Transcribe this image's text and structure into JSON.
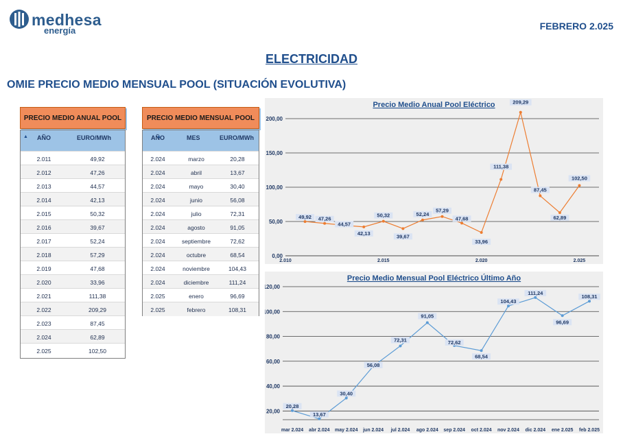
{
  "header": {
    "logo_name": "medhesa",
    "logo_sub": "energía",
    "date": "FEBRERO 2.025"
  },
  "page": {
    "title": "ELECTRICIDAD",
    "subtitle": "OMIE PRECIO MEDIO MENSUAL POOL (SITUACIÓN EVOLUTIVA)"
  },
  "annual_table": {
    "title": "PRECIO MEDIO ANUAL POOL",
    "col_year": "AÑO",
    "col_value": "EURO/MWh",
    "rows": [
      {
        "year": "2.011",
        "value": "49,92"
      },
      {
        "year": "2.012",
        "value": "47,26"
      },
      {
        "year": "2.013",
        "value": "44,57"
      },
      {
        "year": "2.014",
        "value": "42,13"
      },
      {
        "year": "2.015",
        "value": "50,32"
      },
      {
        "year": "2.016",
        "value": "39,67"
      },
      {
        "year": "2.017",
        "value": "52,24"
      },
      {
        "year": "2.018",
        "value": "57,29"
      },
      {
        "year": "2.019",
        "value": "47,68"
      },
      {
        "year": "2.020",
        "value": "33,96"
      },
      {
        "year": "2.021",
        "value": "111,38"
      },
      {
        "year": "2.022",
        "value": "209,29"
      },
      {
        "year": "2.023",
        "value": "87,45"
      },
      {
        "year": "2.024",
        "value": "62,89"
      },
      {
        "year": "2.025",
        "value": "102,50"
      }
    ]
  },
  "monthly_table": {
    "title": "PRECIO MEDIO MENSUAL POOL",
    "col_year": "AÑO",
    "col_month": "MES",
    "col_value": "EURO/MWh",
    "rows": [
      {
        "year": "2.024",
        "month": "marzo",
        "value": "20,28"
      },
      {
        "year": "2.024",
        "month": "abril",
        "value": "13,67"
      },
      {
        "year": "2.024",
        "month": "mayo",
        "value": "30,40"
      },
      {
        "year": "2.024",
        "month": "junio",
        "value": "56,08"
      },
      {
        "year": "2.024",
        "month": "julio",
        "value": "72,31"
      },
      {
        "year": "2.024",
        "month": "agosto",
        "value": "91,05"
      },
      {
        "year": "2.024",
        "month": "septiembre",
        "value": "72,62"
      },
      {
        "year": "2.024",
        "month": "octubre",
        "value": "68,54"
      },
      {
        "year": "2.024",
        "month": "noviembre",
        "value": "104,43"
      },
      {
        "year": "2.024",
        "month": "diciembre",
        "value": "111,24"
      },
      {
        "year": "2.025",
        "month": "enero",
        "value": "96,69"
      },
      {
        "year": "2.025",
        "month": "febrero",
        "value": "108,31"
      }
    ]
  },
  "chart_data": [
    {
      "type": "line",
      "title": "Precio Medio Anual Pool Eléctrico",
      "x": [
        2011,
        2012,
        2013,
        2014,
        2015,
        2016,
        2017,
        2018,
        2019,
        2020,
        2021,
        2022,
        2023,
        2024,
        2025
      ],
      "values": [
        49.92,
        47.26,
        44.57,
        42.13,
        50.32,
        39.67,
        52.24,
        57.29,
        47.68,
        33.96,
        111.38,
        209.29,
        87.45,
        62.89,
        102.5
      ],
      "data_labels": [
        "49,92",
        "47,26",
        "44,57",
        "42,13",
        "50,32",
        "39,67",
        "52,24",
        "57,29",
        "47,68",
        "33,96",
        "111,38",
        "209,29",
        "87,45",
        "62,89",
        "102,50"
      ],
      "xlim": [
        2010,
        2026
      ],
      "xticks": [
        2010,
        2015,
        2020,
        2025
      ],
      "xtick_labels": [
        "2.010",
        "2.015",
        "2.020",
        "2.025"
      ],
      "ylim": [
        0,
        200
      ],
      "yticks": [
        0,
        50,
        100,
        150,
        200
      ],
      "ytick_labels": [
        "0,00",
        "50,00",
        "100,00",
        "150,00",
        "200,00"
      ],
      "grid": true,
      "color": "#ed7d31"
    },
    {
      "type": "line",
      "title": "Precio Medio Mensual Pool Eléctrico Último Año",
      "categories": [
        "mar 2.024",
        "abr 2.024",
        "may 2.024",
        "jun 2.024",
        "jul 2.024",
        "ago 2.024",
        "sep 2.024",
        "oct 2.024",
        "nov 2.024",
        "dic 2.024",
        "ene 2.025",
        "feb 2.025"
      ],
      "values": [
        20.28,
        13.67,
        30.4,
        56.08,
        72.31,
        91.05,
        72.62,
        68.54,
        104.43,
        111.24,
        96.69,
        108.31
      ],
      "data_labels": [
        "20,28",
        "13,67",
        "30,40",
        "56,08",
        "72,31",
        "91,05",
        "72,62",
        "68,54",
        "104,43",
        "111,24",
        "96,69",
        "108,31"
      ],
      "ylim": [
        13,
        120
      ],
      "yticks": [
        20,
        40,
        60,
        80,
        100,
        120
      ],
      "ytick_labels": [
        "20,00",
        "40,00",
        "60,00",
        "80,00",
        "100,00",
        "120,00"
      ],
      "grid": true,
      "color": "#5b9bd5"
    }
  ]
}
